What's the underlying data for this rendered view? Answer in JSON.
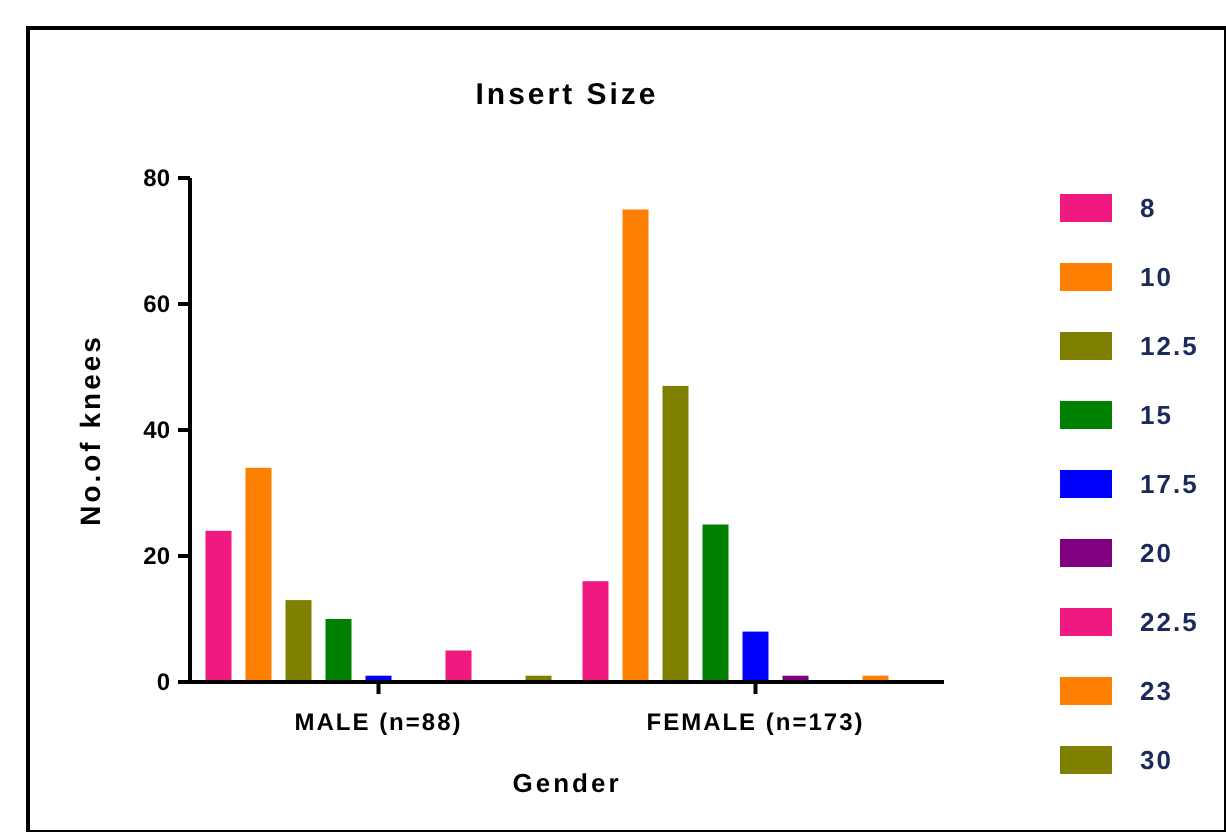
{
  "chart_data": {
    "type": "bar",
    "title": "Insert Size",
    "xlabel": "Gender",
    "ylabel": "No.of knees",
    "categories": [
      "MALE (n=88)",
      "FEMALE (n=173)"
    ],
    "ylim": [
      0,
      80
    ],
    "yticks": [
      0,
      20,
      40,
      60,
      80
    ],
    "grid": false,
    "legend": "right",
    "series": [
      {
        "name": "8",
        "color": "#f0197f",
        "values": [
          24,
          16
        ]
      },
      {
        "name": "10",
        "color": "#ff8000",
        "values": [
          34,
          75
        ]
      },
      {
        "name": "12.5",
        "color": "#808000",
        "values": [
          13,
          47
        ]
      },
      {
        "name": "15",
        "color": "#008000",
        "values": [
          10,
          25
        ]
      },
      {
        "name": "17.5",
        "color": "#0000ff",
        "values": [
          1,
          8
        ]
      },
      {
        "name": "20",
        "color": "#800080",
        "values": [
          0,
          1
        ]
      },
      {
        "name": "22.5",
        "color": "#f0197f",
        "values": [
          5,
          0
        ]
      },
      {
        "name": "23",
        "color": "#ff8000",
        "values": [
          0,
          1
        ]
      },
      {
        "name": "30",
        "color": "#808000",
        "values": [
          1,
          0
        ]
      }
    ]
  }
}
